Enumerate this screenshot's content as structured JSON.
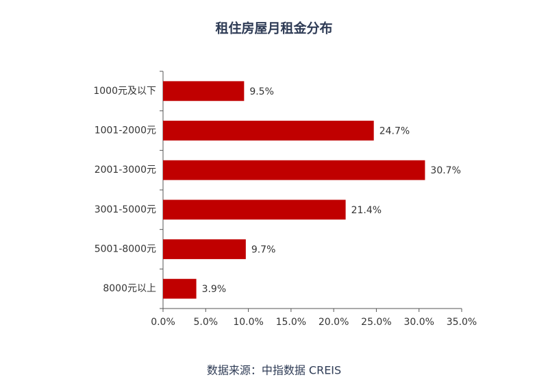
{
  "chart_data": {
    "type": "bar",
    "orientation": "horizontal",
    "title": "租住房屋月租金分布",
    "source": "数据来源：中指数据 CREIS",
    "categories": [
      "1000元及以下",
      "1001-2000元",
      "2001-3000元",
      "3001-5000元",
      "5001-8000元",
      "8000元以上"
    ],
    "values": [
      9.5,
      24.7,
      30.7,
      21.4,
      9.7,
      3.9
    ],
    "value_labels": [
      "9.5%",
      "24.7%",
      "30.7%",
      "21.4%",
      "9.7%",
      "3.9%"
    ],
    "color": "#c00000",
    "xlim": [
      0,
      35
    ],
    "xticks": [
      {
        "value": 0,
        "label": "0.0%"
      },
      {
        "value": 5,
        "label": "5.0%"
      },
      {
        "value": 10,
        "label": "10.0%"
      },
      {
        "value": 15,
        "label": "15.0%"
      },
      {
        "value": 20,
        "label": "20.0%"
      },
      {
        "value": 25,
        "label": "25.0%"
      },
      {
        "value": 30,
        "label": "30.0%"
      },
      {
        "value": 35,
        "label": "35.0%"
      }
    ],
    "grid": false
  }
}
